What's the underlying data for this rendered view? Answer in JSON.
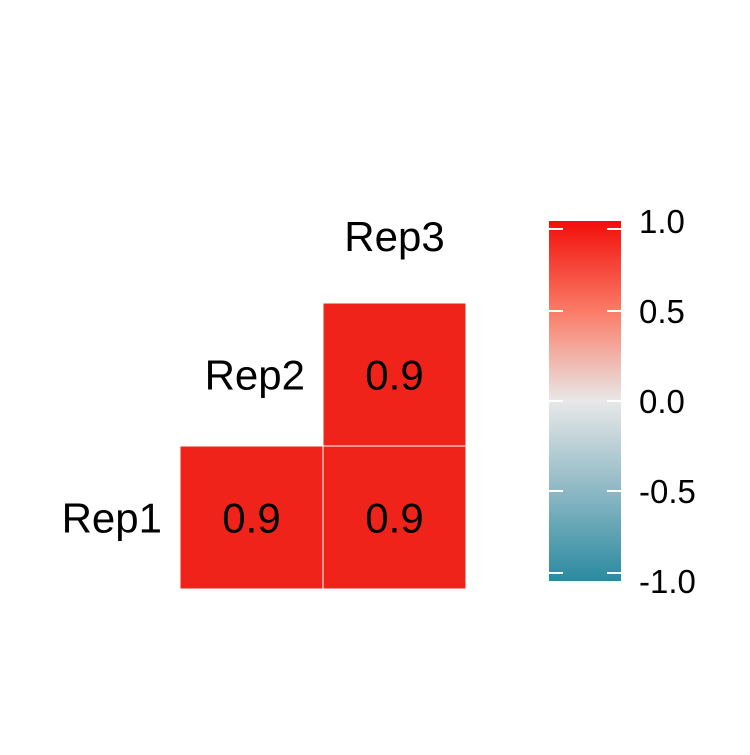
{
  "chart_data": {
    "type": "heatmap",
    "variables": [
      "Rep1",
      "Rep2",
      "Rep3"
    ],
    "layout": "lower-triangle",
    "cells": [
      {
        "row": "Rep1",
        "col": "Rep2",
        "value": 0.9,
        "label": "0.9"
      },
      {
        "row": "Rep1",
        "col": "Rep3",
        "value": 0.9,
        "label": "0.9"
      },
      {
        "row": "Rep2",
        "col": "Rep3",
        "value": 0.9,
        "label": "0.9"
      }
    ],
    "legend": {
      "position": "right",
      "range": [
        -1.0,
        1.0
      ],
      "ticks": [
        1.0,
        0.5,
        0.0,
        -0.5,
        -1.0
      ],
      "tick_labels": [
        "1.0",
        "0.5",
        "0.0",
        "-0.5",
        "-1.0"
      ],
      "colors": {
        "low": "#2a8aa0",
        "mid": "#e8e8e8",
        "high": "#f20f0a"
      }
    },
    "cell_color": "#f0231a",
    "title": "",
    "xlabel": "",
    "ylabel": ""
  }
}
